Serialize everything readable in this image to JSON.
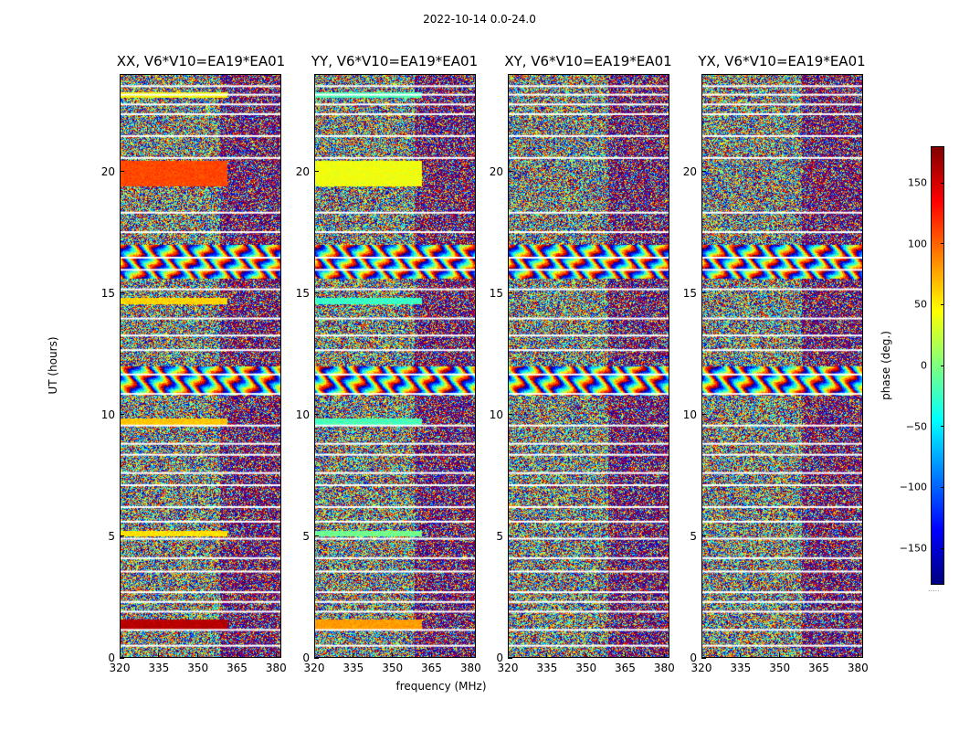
{
  "chart_data": {
    "type": "heatmap",
    "suptitle": "2022-10-14 0.0-24.0",
    "xlabel": "frequency (MHz)",
    "ylabel": "UT (hours)",
    "colorbar_label": "phase (deg.)",
    "colormap": "jet",
    "colorbar_range": [
      -180,
      180
    ],
    "colorbar_ticks": [
      150,
      100,
      50,
      0,
      -50,
      -100,
      -150
    ],
    "colorbar_tick_labels": [
      "150",
      "100",
      "50",
      "0",
      "−50",
      "−100",
      "−150"
    ],
    "colorbar_footer": ".....",
    "xlim": [
      320,
      382
    ],
    "ylim": [
      0,
      24
    ],
    "xticks": [
      320,
      335,
      350,
      365,
      380
    ],
    "xtick_labels": [
      "320",
      "335",
      "350",
      "365",
      "380"
    ],
    "yticks": [
      0,
      5,
      10,
      15,
      20
    ],
    "ytick_labels": [
      "0",
      "5",
      "10",
      "15",
      "20"
    ],
    "panels": [
      {
        "title": "XX, V6*V10=EA19*EA01",
        "polarization": "XX"
      },
      {
        "title": "YY, V6*V10=EA19*EA01",
        "polarization": "YY"
      },
      {
        "title": "XY, V6*V10=EA19*EA01",
        "polarization": "XY"
      },
      {
        "title": "YX, V6*V10=EA19*EA01",
        "polarization": "YX"
      }
    ],
    "flagged_ut_hours": [
      0.5,
      1.15,
      1.9,
      2.3,
      2.7,
      3.55,
      4.1,
      4.9,
      5.6,
      6.2,
      7.1,
      7.6,
      8.35,
      8.8,
      9.55,
      10.85,
      11.65,
      12.65,
      13.25,
      13.95,
      15.15,
      15.95,
      16.45,
      17.5,
      18.3,
      20.55,
      21.45,
      22.35,
      22.75,
      23.15,
      23.5
    ],
    "coherent_ut_bands": [
      {
        "from": 1.2,
        "to": 1.6,
        "phase_XX": 160,
        "phase_YY": 80
      },
      {
        "from": 5.0,
        "to": 5.25,
        "phase_XX": 55,
        "phase_YY": -5
      },
      {
        "from": 9.6,
        "to": 9.85,
        "phase_XX": 65,
        "phase_YY": -20
      },
      {
        "from": 14.55,
        "to": 14.8,
        "phase_XX": 60,
        "phase_YY": -25
      },
      {
        "from": 19.4,
        "to": 20.45,
        "phase_XX": 110,
        "phase_YY": 40
      },
      {
        "from": 23.05,
        "to": 23.25,
        "phase_XX": 45,
        "phase_YY": -20
      }
    ],
    "coherent_freq_range_mhz": [
      320,
      361
    ]
  }
}
